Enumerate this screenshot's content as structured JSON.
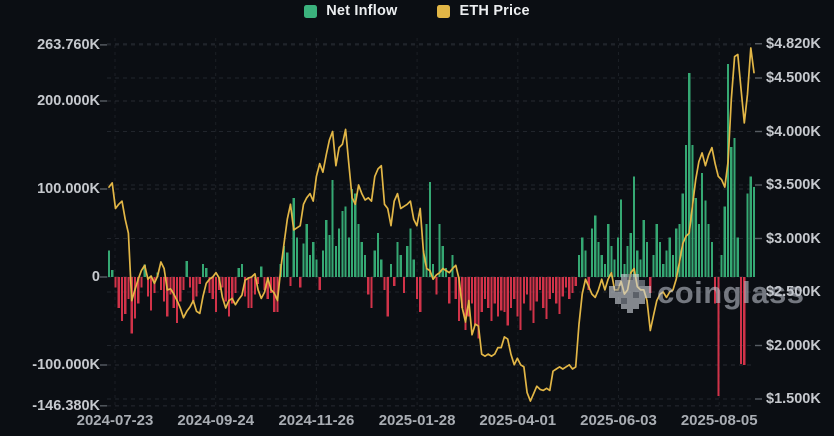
{
  "legend": {
    "items": [
      {
        "label": "Net Inflow",
        "color": "#3bb27d",
        "type": "bar"
      },
      {
        "label": "ETH Price",
        "color": "#e2b646",
        "type": "line"
      }
    ]
  },
  "watermark": {
    "text": "coinglass"
  },
  "colors": {
    "background": "#0b0e13",
    "inflow_positive": "#35a873",
    "inflow_negative": "#d13349",
    "price_line": "#e2b646",
    "grid": "#2a2e35",
    "axis_text": "#c6c9ce",
    "x_axis_text": "#a9adb3"
  },
  "chart_data": {
    "type": "combo bar+line",
    "title": "",
    "x_ticks": [
      "2024-07-23",
      "2024-09-24",
      "2024-11-26",
      "2025-01-28",
      "2025-04-01",
      "2025-06-03",
      "2025-08-05"
    ],
    "left_axis": {
      "name": "Net Inflow",
      "tick_labels": [
        "263.760K",
        "200.000K",
        "100.000K",
        "0",
        "-100.000K",
        "-146.380K"
      ],
      "tick_values": [
        263.76,
        200,
        100,
        0,
        -100,
        -146.38
      ],
      "range": [
        -146.38,
        263.76
      ]
    },
    "right_axis": {
      "name": "ETH Price",
      "tick_labels": [
        "$4.820K",
        "$4.500K",
        "$4.000K",
        "$3.500K",
        "$3.000K",
        "$2.500K",
        "$2.000K",
        "$1.500K"
      ],
      "tick_values": [
        4.82,
        4.5,
        4.0,
        3.5,
        3.0,
        2.5,
        2.0,
        1.5
      ],
      "range": [
        1.5,
        4.82
      ]
    },
    "grid": "dashed, horizontal for both axes + vertical at date ticks",
    "legend_position": "top-center",
    "series": [
      {
        "name": "Net Inflow",
        "type": "bar",
        "unit": "K",
        "values": [
          30,
          8,
          -12,
          -35,
          -50,
          -42,
          -25,
          -64,
          -47,
          -30,
          -12,
          14,
          -22,
          -38,
          -18,
          5,
          -15,
          -28,
          -45,
          -20,
          -35,
          -52,
          -28,
          -15,
          18,
          -12,
          -30,
          -22,
          -8,
          15,
          10,
          -18,
          -25,
          -40,
          -15,
          -12,
          -28,
          -45,
          -30,
          -18,
          10,
          15,
          -22,
          -35,
          -35,
          -20,
          -8,
          12,
          -15,
          -25,
          -18,
          -40,
          -40,
          15,
          35,
          28,
          -10,
          90,
          45,
          -12,
          38,
          60,
          25,
          40,
          20,
          -15,
          30,
          65,
          48,
          110,
          35,
          55,
          75,
          80,
          45,
          100,
          95,
          60,
          40,
          25,
          -20,
          -35,
          30,
          50,
          20,
          -15,
          -45,
          15,
          -10,
          40,
          25,
          -18,
          35,
          55,
          20,
          -25,
          -40,
          30,
          60,
          108,
          15,
          -20,
          60,
          35,
          10,
          -30,
          25,
          -25,
          -50,
          -35,
          -60,
          -45,
          -30,
          -55,
          -70,
          -40,
          -25,
          -35,
          -50,
          -30,
          -45,
          -38,
          -40,
          -55,
          -35,
          -25,
          -45,
          -60,
          -30,
          -20,
          -38,
          -52,
          -28,
          -15,
          -35,
          -48,
          -25,
          -18,
          -30,
          -42,
          -22,
          -12,
          -25,
          -18,
          -10,
          25,
          45,
          30,
          -15,
          55,
          70,
          40,
          25,
          15,
          60,
          35,
          20,
          45,
          88,
          15,
          35,
          50,
          114,
          30,
          20,
          65,
          40,
          -18,
          25,
          60,
          40,
          15,
          30,
          45,
          25,
          55,
          60,
          95,
          150,
          232,
          150,
          90,
          60,
          118,
          87,
          60,
          40,
          -30,
          -135,
          25,
          80,
          242,
          148,
          158,
          45,
          -99,
          -100,
          95,
          114,
          102
        ]
      },
      {
        "name": "ETH Price",
        "type": "line",
        "unit": "$K",
        "values": [
          3.48,
          3.52,
          3.28,
          3.32,
          3.35,
          3.18,
          3.05,
          2.42,
          2.52,
          2.62,
          2.7,
          2.75,
          2.62,
          2.65,
          2.58,
          2.65,
          2.78,
          2.72,
          2.52,
          2.53,
          2.48,
          2.42,
          2.35,
          2.26,
          2.32,
          2.36,
          2.42,
          2.32,
          2.3,
          2.46,
          2.58,
          2.62,
          2.64,
          2.68,
          2.63,
          2.45,
          2.35,
          2.42,
          2.44,
          2.38,
          2.43,
          2.47,
          2.61,
          2.63,
          2.64,
          2.67,
          2.52,
          2.44,
          2.5,
          2.63,
          2.52,
          2.49,
          2.42,
          2.72,
          2.95,
          3.18,
          3.32,
          3.08,
          3.1,
          3.12,
          3.32,
          3.38,
          3.42,
          3.35,
          3.58,
          3.7,
          3.62,
          3.78,
          3.92,
          4.0,
          3.68,
          3.85,
          3.88,
          4.02,
          3.7,
          3.38,
          3.32,
          3.5,
          3.42,
          3.36,
          3.38,
          3.35,
          3.58,
          3.65,
          3.68,
          3.32,
          3.28,
          3.12,
          3.35,
          3.42,
          3.28,
          3.3,
          3.32,
          3.35,
          3.18,
          3.12,
          3.28,
          2.88,
          2.72,
          2.7,
          2.62,
          2.66,
          2.68,
          2.72,
          2.7,
          2.68,
          2.72,
          2.75,
          2.62,
          2.35,
          2.22,
          2.42,
          2.1,
          2.2,
          2.18,
          1.92,
          1.9,
          1.92,
          1.9,
          1.92,
          1.98,
          1.98,
          2.08,
          2.06,
          1.92,
          1.82,
          1.88,
          1.82,
          1.8,
          1.56,
          1.48,
          1.55,
          1.62,
          1.59,
          1.58,
          1.6,
          1.58,
          1.76,
          1.78,
          1.8,
          1.78,
          1.8,
          1.82,
          1.78,
          1.8,
          2.2,
          2.48,
          2.62,
          2.55,
          2.48,
          2.45,
          2.52,
          2.62,
          2.52,
          2.62,
          2.68,
          2.52,
          2.52,
          2.6,
          2.48,
          2.52,
          2.68,
          2.72,
          2.55,
          2.52,
          2.52,
          2.42,
          2.14,
          2.28,
          2.42,
          2.48,
          2.5,
          2.45,
          2.5,
          2.52,
          2.62,
          2.78,
          2.95,
          3.02,
          3.05,
          3.3,
          3.55,
          3.72,
          3.8,
          3.68,
          3.78,
          3.85,
          3.7,
          3.58,
          3.55,
          3.48,
          3.72,
          4.3,
          4.7,
          4.72,
          4.4,
          4.08,
          4.35,
          4.78,
          4.55
        ]
      }
    ]
  }
}
